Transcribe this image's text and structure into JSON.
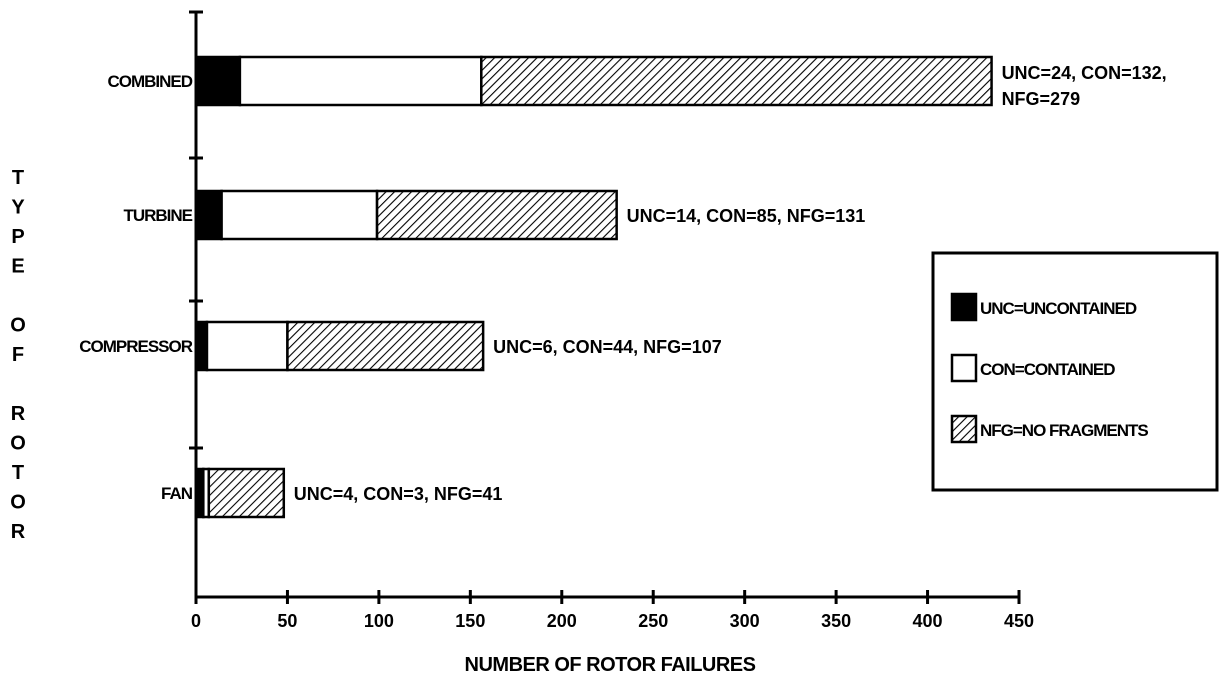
{
  "chart_data": {
    "type": "bar",
    "orientation": "horizontal",
    "stacked": true,
    "categories": [
      "COMBINED",
      "TURBINE",
      "COMPRESSOR",
      "FAN"
    ],
    "series": [
      {
        "name": "UNC=UNCONTAINED",
        "key": "UNC",
        "values": [
          24,
          14,
          6,
          4
        ],
        "fill": "#000000",
        "pattern": "solid"
      },
      {
        "name": "CON=CONTAINED",
        "key": "CON",
        "values": [
          132,
          85,
          44,
          3
        ],
        "fill": "#ffffff",
        "pattern": "none"
      },
      {
        "name": "NFG=NO FRAGMENTS",
        "key": "NFG",
        "values": [
          279,
          131,
          107,
          41
        ],
        "fill": "#ffffff",
        "pattern": "hatched"
      }
    ],
    "annotations": [
      {
        "category": "COMBINED",
        "lines": [
          "UNC=24, CON=132,",
          "NFG=279"
        ]
      },
      {
        "category": "TURBINE",
        "lines": [
          "UNC=14, CON=85, NFG=131"
        ]
      },
      {
        "category": "COMPRESSOR",
        "lines": [
          "UNC=6, CON=44, NFG=107"
        ]
      },
      {
        "category": "FAN",
        "lines": [
          "UNC=4, CON=3, NFG=41"
        ]
      }
    ],
    "xlabel": "NUMBER OF ROTOR FAILURES",
    "ylabel": "TYPE OF ROTOR",
    "xlim": [
      0,
      450
    ],
    "xticks": [
      0,
      50,
      100,
      150,
      200,
      250,
      300,
      350,
      400,
      450
    ],
    "grid": false,
    "legend_position": "right"
  }
}
